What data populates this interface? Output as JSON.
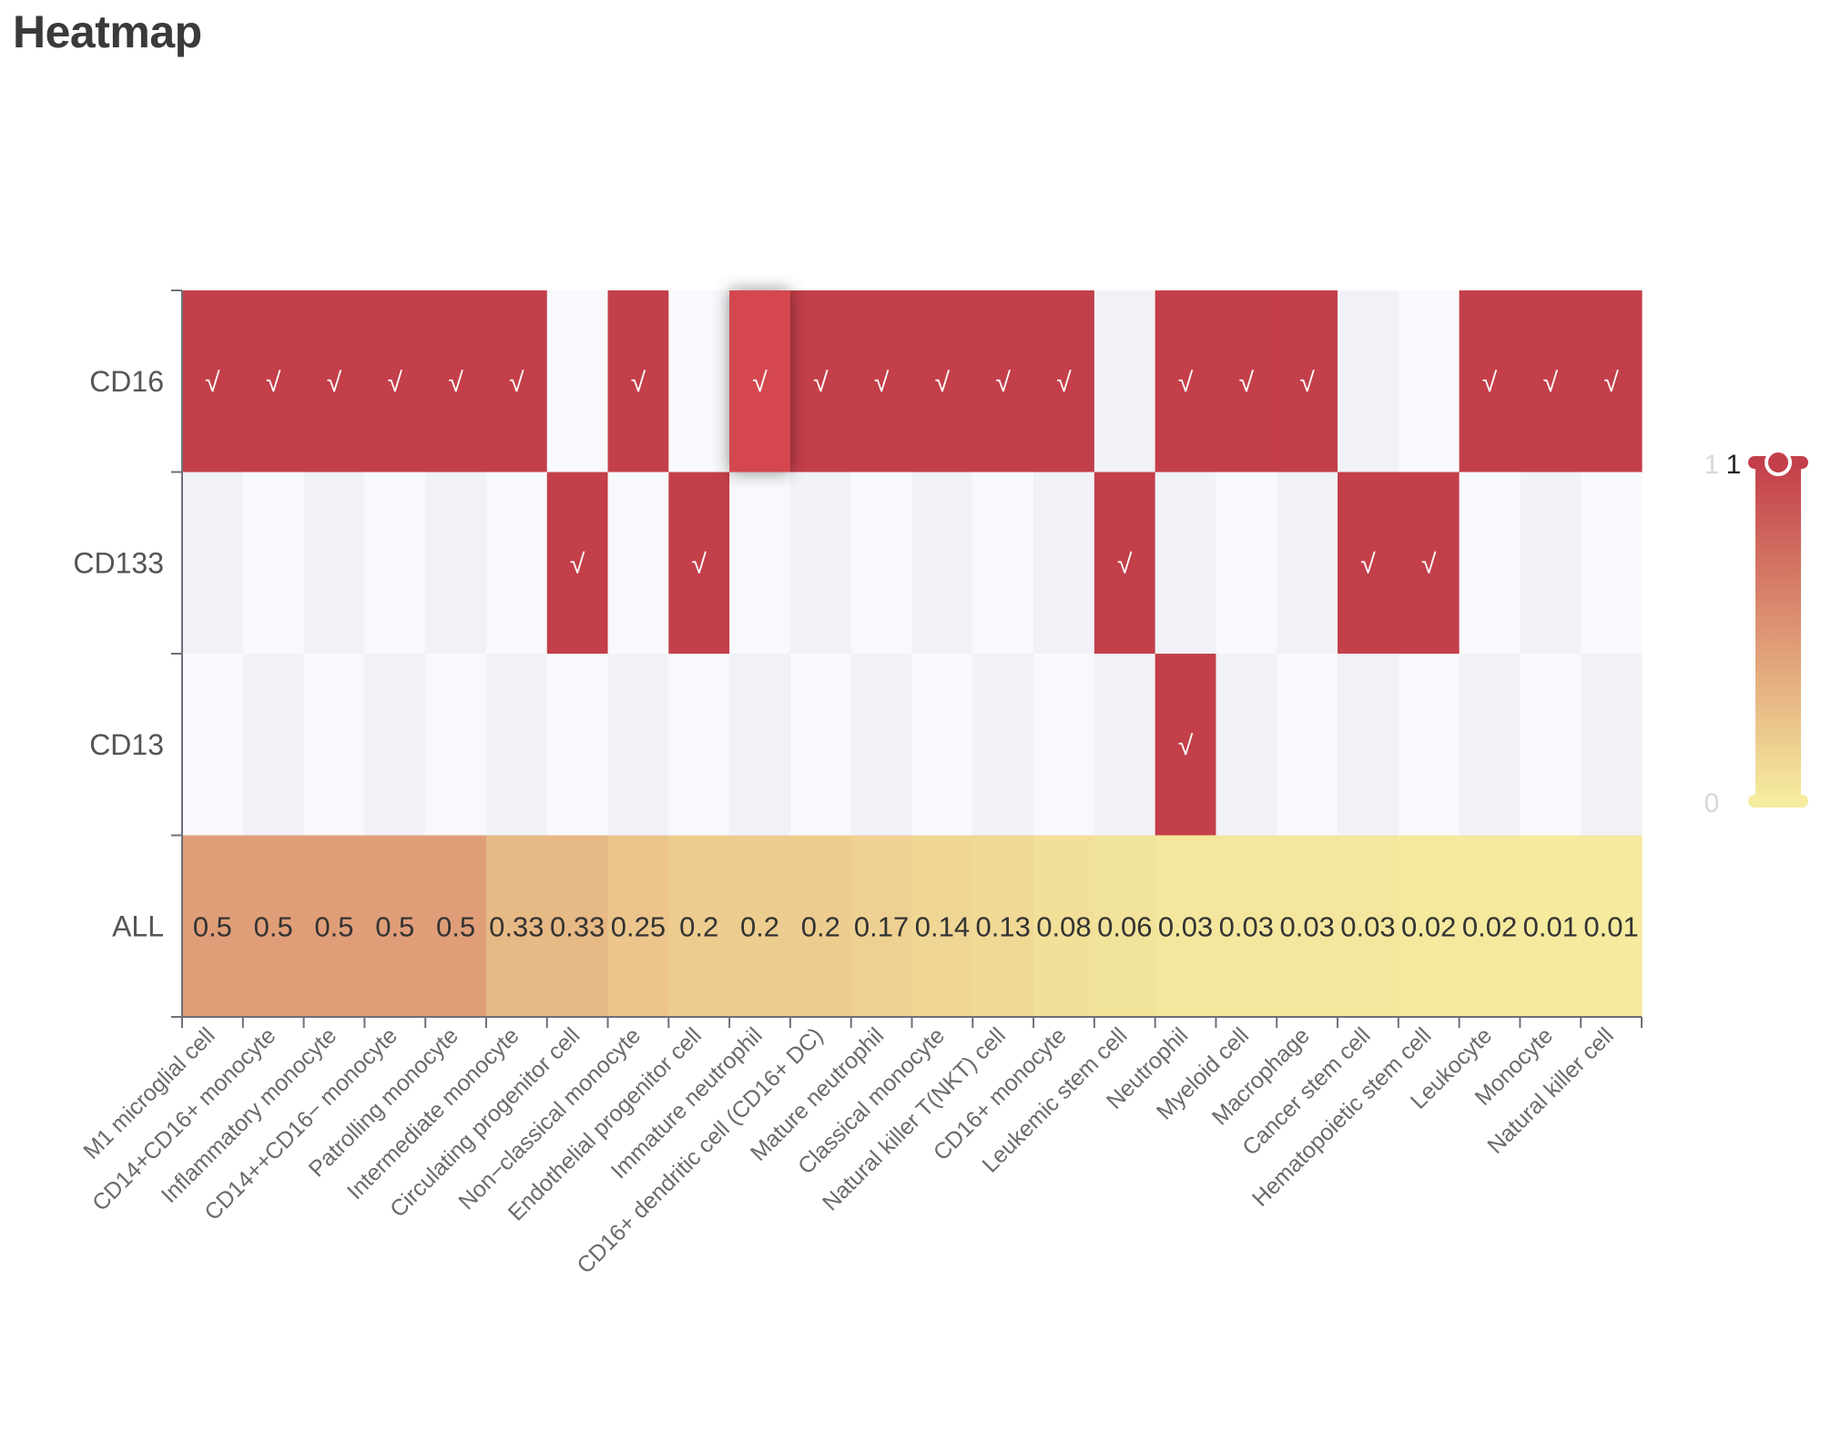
{
  "title": "Heatmap",
  "colors": {
    "high": "#c33f4a",
    "low": "#f5ec9f",
    "positive_cell": "#c33f4a",
    "negative_cell_a": "#f8f9fc",
    "negative_cell_b": "#f0f2f8",
    "hover_cell": "#d4464f",
    "mark": "#ffffff"
  },
  "chart_data": {
    "type": "heatmap",
    "x_categories": [
      "M1 microglial cell",
      "CD14+CD16+ monocyte",
      "Inflammatory monocyte",
      "CD14++CD16− monocyte",
      "Patrolling monocyte",
      "Intermediate monocyte",
      "Circulating progenitor cell",
      "Non−classical monocyte",
      "Endothelial progenitor cell",
      "Immature neutrophil",
      "CD16+ dendritic cell (CD16+ DC)",
      "Mature neutrophil",
      "Classical monocyte",
      "Natural killer T(NKT) cell",
      "CD16+ monocyte",
      "Leukemic stem cell",
      "Neutrophil",
      "Myeloid cell",
      "Macrophage",
      "Cancer stem cell",
      "Hematopoietic stem cell",
      "Leukocyte",
      "Monocyte",
      "Natural killer cell"
    ],
    "y_categories": [
      "CD16",
      "CD133",
      "CD13",
      "ALL"
    ],
    "marker_rows": [
      {
        "name": "CD16",
        "values": [
          1,
          1,
          1,
          1,
          1,
          1,
          0,
          1,
          0,
          1,
          1,
          1,
          1,
          1,
          1,
          0,
          1,
          1,
          1,
          0,
          0,
          1,
          1,
          1
        ]
      },
      {
        "name": "CD133",
        "values": [
          0,
          0,
          0,
          0,
          0,
          0,
          1,
          0,
          1,
          0,
          0,
          0,
          0,
          0,
          0,
          1,
          0,
          0,
          0,
          1,
          1,
          0,
          0,
          0
        ]
      },
      {
        "name": "CD13",
        "values": [
          0,
          0,
          0,
          0,
          0,
          0,
          0,
          0,
          0,
          0,
          0,
          0,
          0,
          0,
          0,
          0,
          1,
          0,
          0,
          0,
          0,
          0,
          0,
          0
        ]
      }
    ],
    "all_row": {
      "name": "ALL",
      "values": [
        0.5,
        0.5,
        0.5,
        0.5,
        0.5,
        0.33,
        0.33,
        0.25,
        0.2,
        0.2,
        0.2,
        0.17,
        0.14,
        0.13,
        0.08,
        0.06,
        0.03,
        0.03,
        0.03,
        0.03,
        0.02,
        0.02,
        0.01,
        0.01
      ],
      "labels": [
        "0.5",
        "0.5",
        "0.5",
        "0.5",
        "0.5",
        "0.33",
        "0.33",
        "0.25",
        "0.2",
        "0.2",
        "0.2",
        "0.17",
        "0.14",
        "0.13",
        "0.08",
        "0.06",
        "0.03",
        "0.03",
        "0.03",
        "0.03",
        "0.02",
        "0.02",
        "0.01",
        "0.01"
      ]
    },
    "marker_symbol": "√",
    "highlighted_cell": {
      "row": "CD16",
      "column": "Immature neutrophil"
    },
    "visual_map": {
      "min": 0,
      "max": 1,
      "min_label": "0",
      "max_label": "1",
      "max_label_faint": "1"
    }
  }
}
